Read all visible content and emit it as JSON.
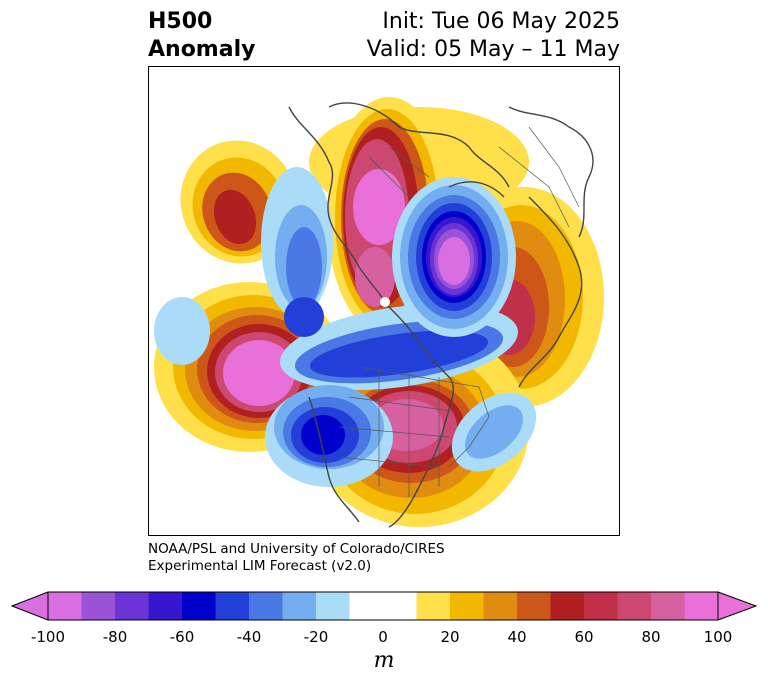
{
  "title": {
    "left_line1": "H500",
    "left_line2": "Anomaly",
    "right_line1": "Init: Tue 06 May 2025",
    "right_line2": "Valid: 05 May – 11 May"
  },
  "credit": {
    "line1": "NOAA/PSL and University of Colorado/CIRES",
    "line2": "Experimental LIM Forecast (v2.0)"
  },
  "colorbar": {
    "unit": "m",
    "ticks": [
      "-100",
      "-80",
      "-60",
      "-40",
      "-20",
      "0",
      "20",
      "40",
      "60",
      "80",
      "100"
    ],
    "colors": [
      "#d86ee0",
      "#9a52d8",
      "#6a34d6",
      "#3716d0",
      "#0000cc",
      "#2240d8",
      "#4a78e4",
      "#74aef0",
      "#aadcf8",
      "#ffffff",
      "#ffffff",
      "#ffe04a",
      "#f2b800",
      "#e08c10",
      "#cc5718",
      "#b02020",
      "#c03048",
      "#cc4870",
      "#d660a0",
      "#e870d8"
    ]
  },
  "map": {
    "projection": "polar-stereographic",
    "region": "Northern Hemisphere",
    "anomaly_centers": [
      {
        "sign": "positive",
        "location": "North Pacific (east of Kamchatka)",
        "peak_m": 70
      },
      {
        "sign": "positive",
        "location": "Central North Pacific",
        "peak_m": 100
      },
      {
        "sign": "positive",
        "location": "Eastern Siberia / Arctic",
        "peak_m": 100
      },
      {
        "sign": "positive",
        "location": "Eastern North America",
        "peak_m": 100
      },
      {
        "sign": "positive",
        "location": "Western Europe / North Atlantic",
        "peak_m": 70
      },
      {
        "sign": "negative",
        "location": "Western North America",
        "peak_m": -70
      },
      {
        "sign": "negative",
        "location": "Russia / Central Asia",
        "peak_m": -100
      },
      {
        "sign": "negative",
        "location": "Alaska / Bering region",
        "peak_m": -40
      },
      {
        "sign": "negative",
        "location": "Western Pacific",
        "peak_m": -20
      },
      {
        "sign": "negative",
        "location": "Central North Atlantic",
        "peak_m": -40
      }
    ]
  }
}
